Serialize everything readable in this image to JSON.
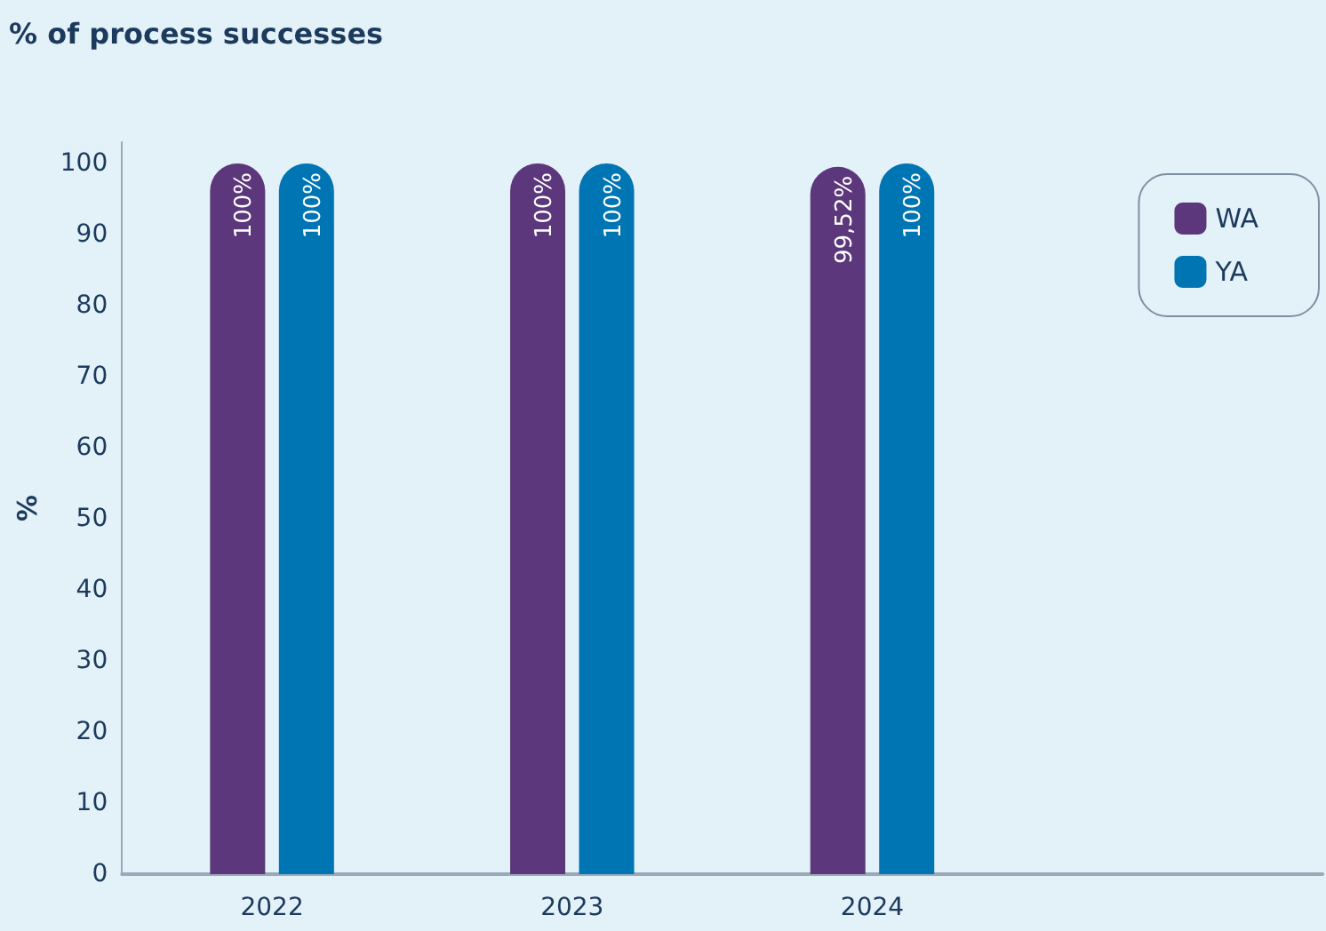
{
  "chart_data": {
    "type": "bar",
    "title": "% of process successes",
    "ylabel": "%",
    "categories": [
      "2022",
      "2023",
      "2024",
      null
    ],
    "series": [
      {
        "name": "WA",
        "color": "#5c377b",
        "values": [
          100,
          100,
          99.52,
          null
        ],
        "value_labels": [
          "100%",
          "100%",
          "99,52%",
          null
        ]
      },
      {
        "name": "YA",
        "color": "#0075b4",
        "values": [
          100,
          100,
          100,
          null
        ],
        "value_labels": [
          "100%",
          "100%",
          "100%",
          null
        ]
      }
    ],
    "ylim": [
      0,
      103
    ],
    "yticks": [
      0,
      10,
      20,
      30,
      40,
      50,
      60,
      70,
      80,
      90,
      100
    ],
    "grid": false,
    "legend": "top right"
  }
}
